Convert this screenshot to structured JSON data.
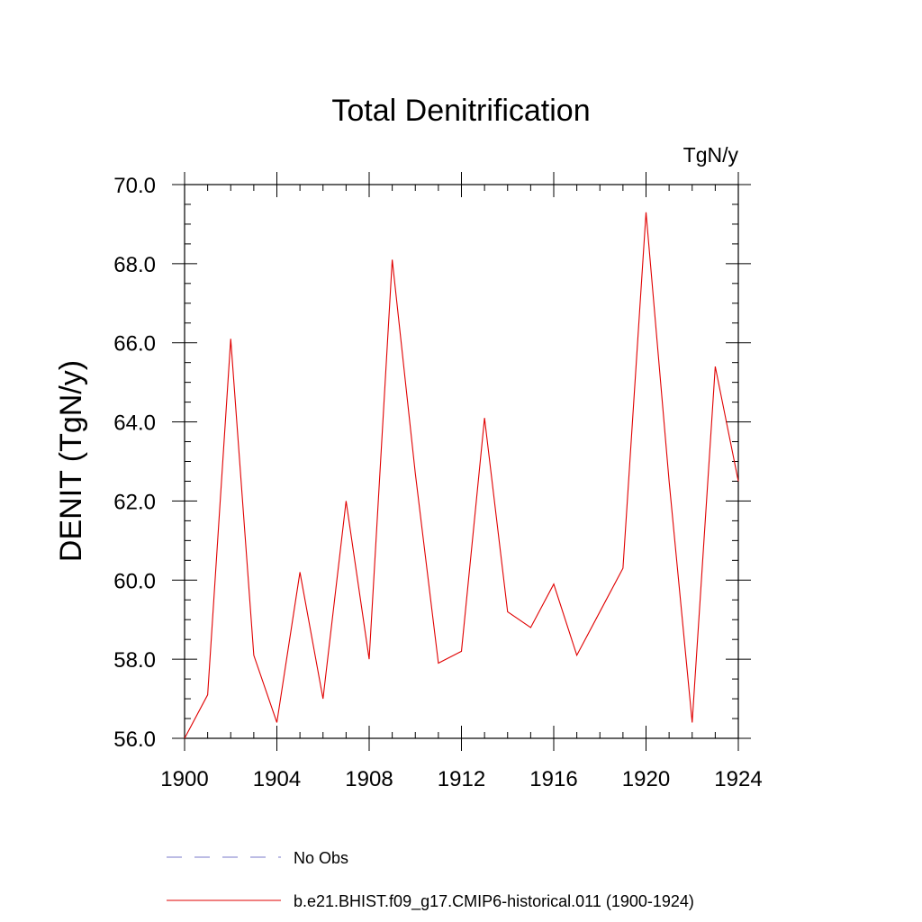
{
  "chart_data": {
    "type": "line",
    "title": "Total Denitrification",
    "units_label": "TgN/y",
    "ylabel": "DENIT  (TgN/y)",
    "xlabel": "",
    "xlim": [
      1900,
      1924
    ],
    "ylim": [
      56.0,
      70.0
    ],
    "x_ticks": [
      1900,
      1904,
      1908,
      1912,
      1916,
      1920,
      1924
    ],
    "x_tick_labels": [
      "1900",
      "1904",
      "1908",
      "1912",
      "1916",
      "1920",
      "1924"
    ],
    "y_ticks": [
      56.0,
      58.0,
      60.0,
      62.0,
      64.0,
      66.0,
      68.0,
      70.0
    ],
    "y_tick_labels": [
      "56.0",
      "58.0",
      "60.0",
      "62.0",
      "64.0",
      "66.0",
      "68.0",
      "70.0"
    ],
    "grid": false,
    "legend_placement": "bottom",
    "series": [
      {
        "name": "b.e21.BHIST.f09_g17.CMIP6-historical.011 (1900-1924)",
        "color": "#e00000",
        "style": "solid",
        "x": [
          1900,
          1901,
          1902,
          1903,
          1904,
          1905,
          1906,
          1907,
          1908,
          1909,
          1910,
          1911,
          1912,
          1913,
          1914,
          1915,
          1916,
          1917,
          1918,
          1919,
          1920,
          1921,
          1922,
          1923,
          1924
        ],
        "y": [
          56.0,
          57.1,
          66.1,
          58.1,
          56.4,
          60.2,
          57.0,
          62.0,
          58.0,
          68.1,
          62.7,
          57.9,
          58.2,
          64.1,
          59.2,
          58.8,
          59.9,
          58.1,
          59.2,
          60.3,
          69.3,
          62.5,
          56.4,
          65.4,
          62.5
        ]
      }
    ],
    "legend": [
      {
        "label": "No Obs",
        "color": "#7878c8",
        "style": "dashed"
      },
      {
        "label": "b.e21.BHIST.f09_g17.CMIP6-historical.011 (1900-1924)",
        "color": "#e00000",
        "style": "solid"
      }
    ]
  }
}
